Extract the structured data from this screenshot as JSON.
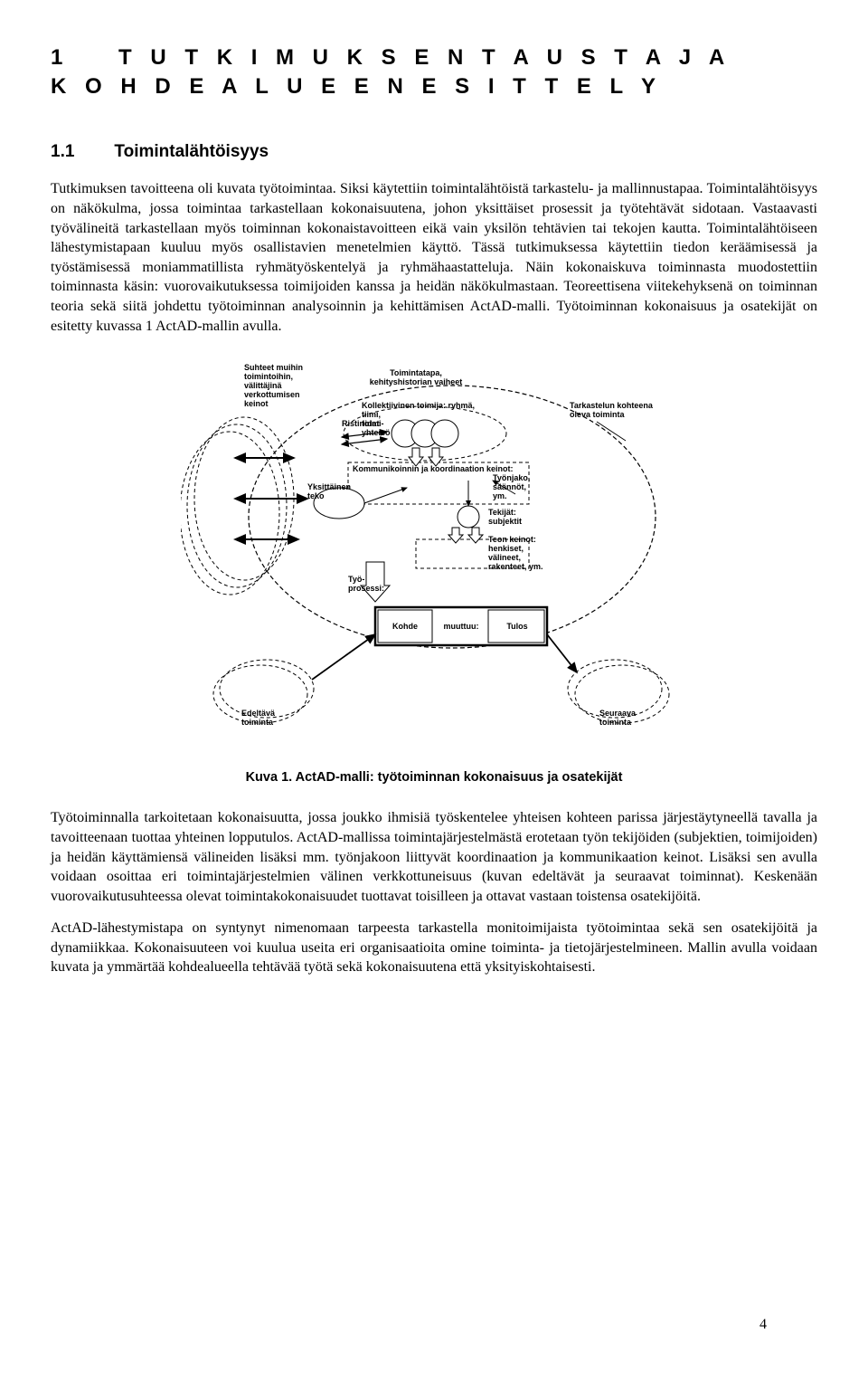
{
  "chapter": {
    "number": "1",
    "title_line": "T U T K I M U K S E N  T A U S T A  J A\nK O H D E A L U E E N  E S I T T E L Y"
  },
  "section": {
    "number": "1.1",
    "title": "Toimintalähtöisyys"
  },
  "paragraphs": {
    "p1": "Tutkimuksen tavoitteena oli kuvata työtoimintaa. Siksi käytettiin toimintalähtöistä tarkastelu- ja mallinnustapaa. Toimintalähtöisyys on näkökulma, jossa toimintaa tarkastellaan kokonaisuutena, johon yksittäiset prosessit ja työtehtävät sidotaan. Vastaavasti työvälineitä tarkastellaan myös toiminnan kokonaistavoitteen eikä vain yksilön tehtävien tai tekojen kautta. Toimintalähtöiseen lähestymistapaan kuuluu myös osallistavien menetelmien käyttö. Tässä tutkimuksessa käytettiin tiedon keräämisessä ja työstämisessä moniammatillista ryhmätyöskentelyä ja ryhmähaastatteluja. Näin kokonaiskuva toiminnasta muodostettiin toiminnasta käsin: vuorovaikutuksessa toimijoiden kanssa ja heidän näkökulmastaan. Teoreettisena viitekehyksenä on toiminnan teoria sekä siitä johdettu työtoiminnan analysoinnin ja kehittämisen ActAD-malli. Työtoiminnan kokonaisuus ja osatekijät on esitetty kuvassa 1 ActAD-mallin avulla.",
    "p2": "Työtoiminnalla tarkoitetaan kokonaisuutta, jossa joukko ihmisiä työskentelee yhteisen kohteen parissa järjestäytyneellä tavalla ja tavoitteenaan tuottaa yhteinen lopputulos. ActAD-mallissa toimintajärjestelmästä erotetaan työn tekijöiden (subjektien, toimijoiden) ja heidän käyttämiensä välineiden lisäksi mm. työnjakoon liittyvät koordinaation ja kommunikaation keinot. Lisäksi sen avulla voidaan osoittaa eri toimintajärjestelmien välinen verkkottuneisuus (kuvan edeltävät ja seuraavat toiminnat). Keskenään vuorovaikutusuhteessa olevat toimintakokonaisuudet tuottavat toisilleen ja ottavat vastaan toistensa osatekijöitä.",
    "p3": "ActAD-lähestymistapa on syntynyt nimenomaan tarpeesta tarkastella monitoimijaista työtoimintaa sekä sen osatekijöitä ja dynamiikkaa. Kokonaisuuteen voi kuulua useita eri organisaatioita omine toiminta- ja tietojärjestelmineen. Mallin avulla voidaan kuvata ja ymmärtää kohdealueella tehtävää työtä sekä kokonaisuutena että yksityiskohtaisesti."
  },
  "figure": {
    "caption": "Kuva 1. ActAD-malli: työtoiminnan kokonaisuus ja osatekijät",
    "labels": {
      "suhteet": "Suhteet muihin\ntoimintoihin,\nvälittäjinä\nverkottumisen\nkeinot",
      "toimintatapa": "Toimintatapa,\nkehityshistorian vaiheet",
      "kollektiivinen": "Kollektiivinen toimija: ryhmä,\ntiimi,\ntoimi-\nyhteisö",
      "ristiriidat": "Ristiriidat",
      "kommunikointi": "Kommunikoinnin ja koordinaation keinot:",
      "tyonjako": "Työnjako,\nsäännöt,\nym.",
      "yksittainen": "Yksittäinen\nteko",
      "tekijat": "Tekijät:\nsubjektit",
      "teon_keinot": "Teon keinot:\nhenkiset,\nvälineet,\nrakenteet, ym.",
      "tyoprosessi": "Työ-\nprosessi:",
      "tarkastelu": "Tarkastelun kohteena\noleva toiminta",
      "edeltava": "Edeltävä\ntoiminta",
      "seuraava": "Seuraava\ntoiminta",
      "kohde": "Kohde",
      "muuttuu": "muuttuu:",
      "tulos": "Tulos"
    },
    "style": {
      "type": "flowchart",
      "stroke": "#000000",
      "dash": "4 3",
      "bg": "#ffffff",
      "font_size_small": 9,
      "font_size_label": 10,
      "line_width": 1.3,
      "arrow_fill": "#000000",
      "ellipse_rx_outer": 225,
      "ellipse_ry_outer": 130
    }
  },
  "page_number": "4"
}
